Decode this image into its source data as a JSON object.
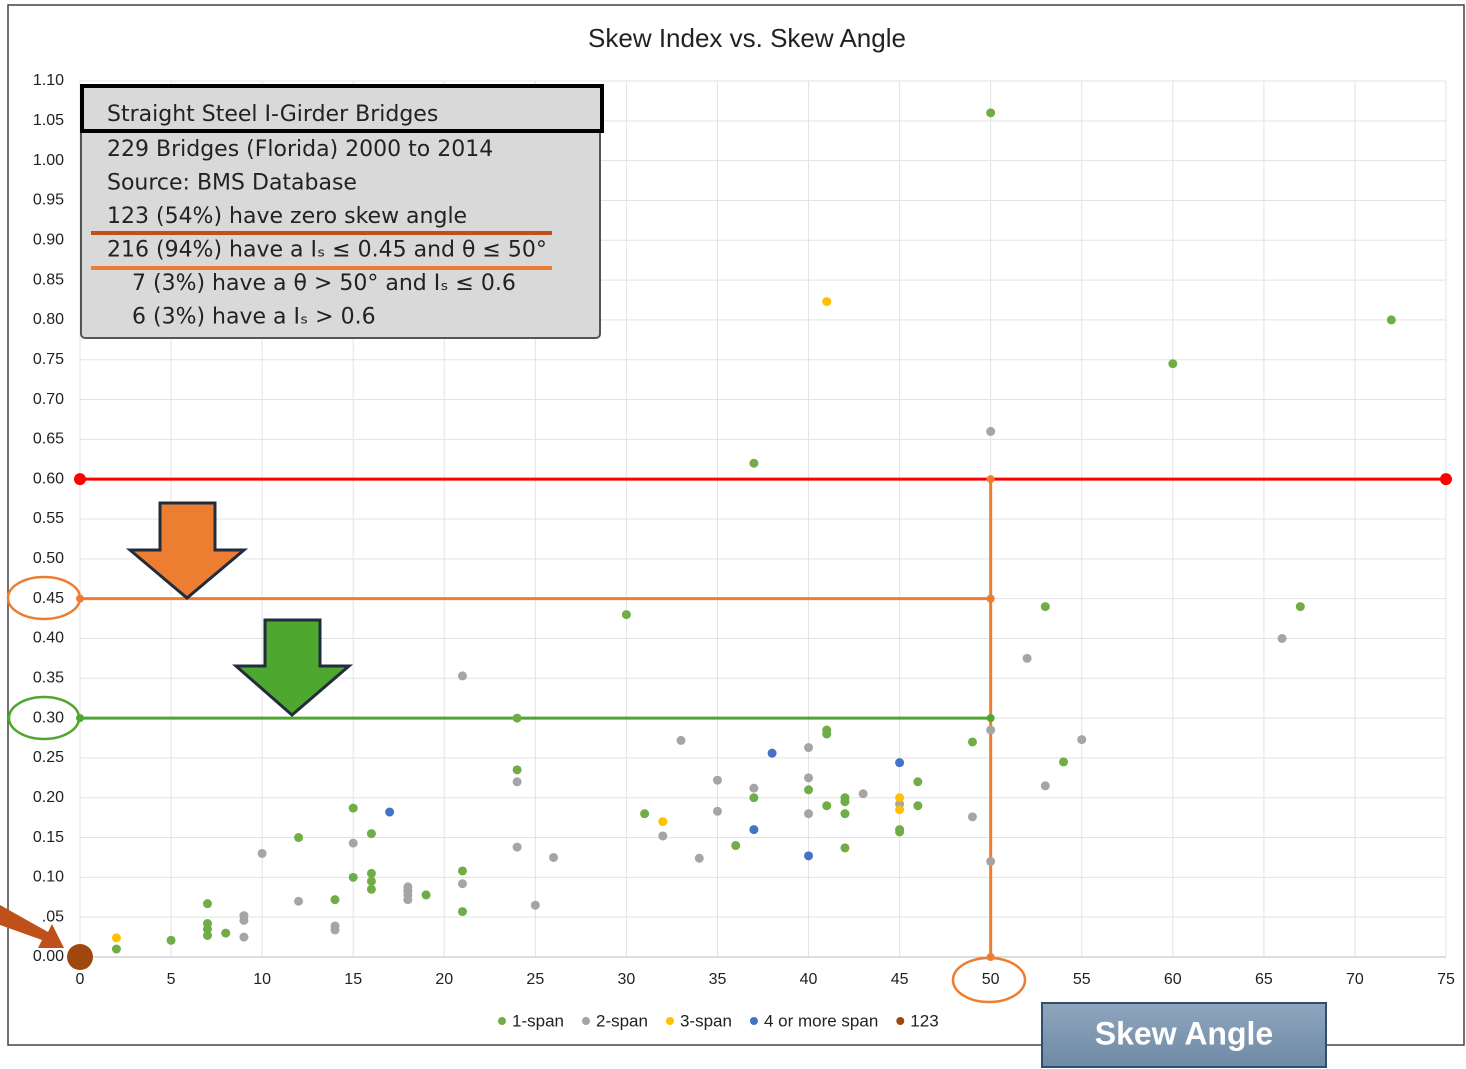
{
  "chart_data": {
    "type": "scatter",
    "title": "Skew Index vs. Skew Angle",
    "x_label": "Skew Angle",
    "xlim": [
      0,
      75
    ],
    "xticks": [
      0,
      5,
      10,
      15,
      20,
      25,
      30,
      35,
      40,
      45,
      50,
      55,
      60,
      65,
      70,
      75
    ],
    "ylim": [
      0,
      1.1
    ],
    "yticks": [
      {
        "value": 0,
        "label": "0.00"
      },
      {
        "value": 0.05,
        "label": ".05"
      },
      {
        "value": 0.1,
        "label": "0.10"
      },
      {
        "value": 0.15,
        "label": "0.15"
      },
      {
        "value": 0.2,
        "label": "0.20"
      },
      {
        "value": 0.25,
        "label": "0.25"
      },
      {
        "value": 0.3,
        "label": "0.30"
      },
      {
        "value": 0.35,
        "label": "0.35"
      },
      {
        "value": 0.4,
        "label": "0.40"
      },
      {
        "value": 0.45,
        "label": "0.45"
      },
      {
        "value": 0.5,
        "label": "0.50"
      },
      {
        "value": 0.55,
        "label": "0.55"
      },
      {
        "value": 0.6,
        "label": "0.60"
      },
      {
        "value": 0.65,
        "label": "0.65"
      },
      {
        "value": 0.7,
        "label": "0.70"
      },
      {
        "value": 0.75,
        "label": "0.75"
      },
      {
        "value": 0.8,
        "label": "0.80"
      },
      {
        "value": 0.85,
        "label": "0.85"
      },
      {
        "value": 0.9,
        "label": "0.90"
      },
      {
        "value": 0.95,
        "label": "0.95"
      },
      {
        "value": 1.0,
        "label": "1.00"
      },
      {
        "value": 1.05,
        "label": "1.05"
      },
      {
        "value": 1.1,
        "label": "1.10"
      }
    ],
    "grid": true,
    "legend": "bottom",
    "series": [
      {
        "name": "1-span",
        "color": "#70ad47",
        "x": [
          50,
          72,
          60,
          37,
          30,
          53,
          67,
          24,
          41,
          41,
          49,
          54,
          24,
          46,
          40,
          37,
          42,
          42,
          41,
          46,
          15,
          31,
          42,
          16,
          12,
          45,
          45,
          36,
          42,
          16,
          21,
          15,
          16,
          16,
          19,
          14,
          7,
          21,
          7,
          7,
          8,
          7,
          5,
          2
        ],
        "values": [
          1.06,
          0.8,
          0.745,
          0.62,
          0.43,
          0.44,
          0.44,
          0.3,
          0.285,
          0.28,
          0.27,
          0.245,
          0.235,
          0.22,
          0.21,
          0.2,
          0.2,
          0.195,
          0.19,
          0.19,
          0.187,
          0.18,
          0.18,
          0.155,
          0.15,
          0.16,
          0.157,
          0.14,
          0.137,
          0.105,
          0.108,
          0.1,
          0.095,
          0.085,
          0.078,
          0.072,
          0.067,
          0.057,
          0.042,
          0.035,
          0.03,
          0.027,
          0.021,
          0.01
        ]
      },
      {
        "name": "2-span",
        "color": "#a5a5a5",
        "x": [
          50,
          52,
          66,
          21,
          50,
          33,
          55,
          40,
          35,
          40,
          24,
          37,
          43,
          53,
          45,
          35,
          40,
          49,
          15,
          32,
          24,
          10,
          26,
          34,
          50,
          18,
          18,
          18,
          18,
          21,
          12,
          25,
          9,
          9,
          14,
          14,
          9
        ],
        "values": [
          0.66,
          0.375,
          0.4,
          0.353,
          0.285,
          0.272,
          0.273,
          0.263,
          0.222,
          0.225,
          0.22,
          0.212,
          0.205,
          0.215,
          0.192,
          0.183,
          0.18,
          0.176,
          0.143,
          0.152,
          0.138,
          0.13,
          0.125,
          0.124,
          0.12,
          0.088,
          0.083,
          0.078,
          0.072,
          0.092,
          0.07,
          0.065,
          0.052,
          0.046,
          0.039,
          0.034,
          0.025
        ]
      },
      {
        "name": "3-span",
        "color": "#ffc000",
        "x": [
          41,
          32,
          45,
          45,
          2
        ],
        "values": [
          0.823,
          0.17,
          0.2,
          0.185,
          0.024
        ]
      },
      {
        "name": "4 or more span",
        "color": "#4472c4",
        "x": [
          38,
          17,
          37,
          45,
          40
        ],
        "values": [
          0.256,
          0.182,
          0.16,
          0.244,
          0.127
        ]
      },
      {
        "name": "123",
        "color": "#9e480e",
        "x": [
          0
        ],
        "values": [
          0
        ]
      }
    ],
    "reference_lines": [
      {
        "color": "#ff0000",
        "x": [
          0,
          75
        ],
        "y": [
          0.6,
          0.6
        ]
      },
      {
        "color": "#ed7d31",
        "x": [
          0,
          50
        ],
        "y": [
          0.45,
          0.45
        ]
      },
      {
        "color": "#ed7d31",
        "x": [
          50,
          50,
          50
        ],
        "y": [
          0,
          0.45,
          0.6
        ]
      },
      {
        "color": "#4ea72e",
        "x": [
          0,
          50
        ],
        "y": [
          0.3,
          0.3
        ]
      }
    ],
    "annotation": {
      "title": "Straight Steel I-Girder Bridges",
      "lines": [
        "229 Bridges (Florida) 2000 to 2014",
        "Source: BMS Database",
        "123 (54%) have zero skew angle",
        "216 (94%) have a Iₛ ≤ 0.45 and θ ≤ 50°",
        "7  (3%) have a θ > 50° and Iₛ ≤ 0.6",
        "6  (3%) have a Iₛ > 0.6"
      ]
    }
  }
}
